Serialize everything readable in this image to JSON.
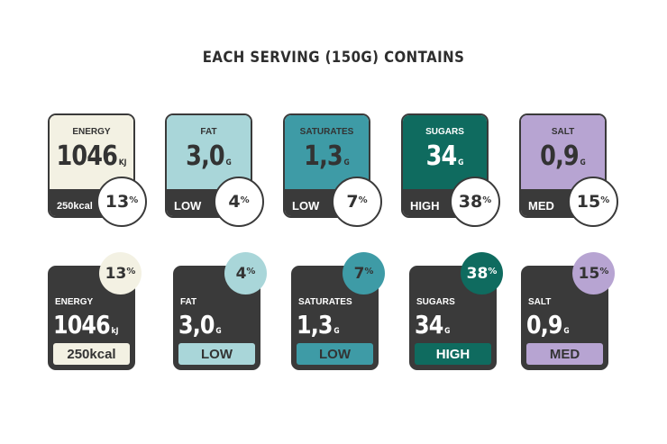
{
  "title": "EACH SERVING (150G) CONTAINS",
  "nutrients": [
    {
      "name": "ENERGY",
      "value": "1046",
      "unit": "KJ",
      "level": "250kcal",
      "percent": "13",
      "color": "#f3f1e3"
    },
    {
      "name": "FAT",
      "value": "3,0",
      "unit": "G",
      "level": "LOW",
      "percent": "4",
      "color": "#a9d6d9"
    },
    {
      "name": "SATURATES",
      "value": "1,3",
      "unit": "G",
      "level": "LOW",
      "percent": "7",
      "color": "#3e9ba6"
    },
    {
      "name": "SUGARS",
      "value": "34",
      "unit": "G",
      "level": "HIGH",
      "percent": "38",
      "color": "#0f6b5f"
    },
    {
      "name": "SALT",
      "value": "0,9",
      "unit": "G",
      "level": "MED",
      "percent": "15",
      "color": "#b7a4d2"
    }
  ],
  "row2_energy_unit": "kJ",
  "row2_energy_level": "250kcal"
}
